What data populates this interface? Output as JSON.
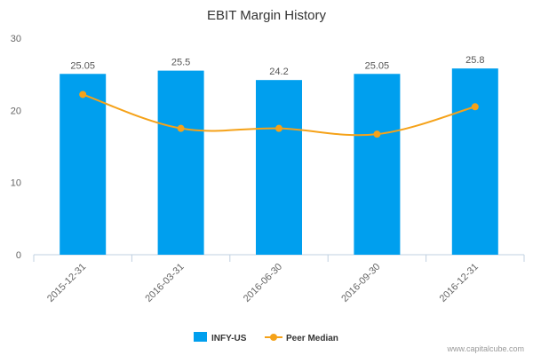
{
  "chart_data": {
    "type": "bar",
    "title": "EBIT Margin History",
    "categories": [
      "2015-12-31",
      "2016-03-31",
      "2016-06-30",
      "2016-09-30",
      "2016-12-31"
    ],
    "series": [
      {
        "name": "INFY-US",
        "type": "bar",
        "color": "#009FEE",
        "values": [
          25.05,
          25.5,
          24.2,
          25.05,
          25.8
        ],
        "labels": [
          "25.05",
          "25.5",
          "24.2",
          "25.05",
          "25.8"
        ]
      },
      {
        "name": "Peer Median",
        "type": "line",
        "color": "#F5A219",
        "values": [
          22.2,
          17.5,
          17.5,
          16.7,
          20.5
        ]
      }
    ],
    "yticks": [
      "0",
      "10",
      "20",
      "30"
    ],
    "ylim": [
      0,
      30
    ],
    "grid": false,
    "legend": "bottom-center"
  },
  "watermark": "www.capitalcube.com"
}
